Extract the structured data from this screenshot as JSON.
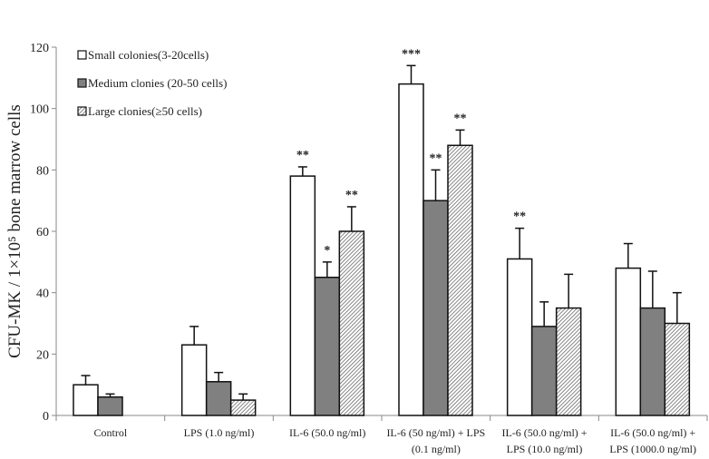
{
  "chart_data": {
    "type": "bar",
    "ylabel": "CFU-MK / 1×10⁵  bone marrow cells",
    "ylim": [
      0,
      120
    ],
    "yticks": [
      0,
      20,
      40,
      60,
      80,
      100,
      120
    ],
    "grid": false,
    "legend_placement": "top-left",
    "categories": [
      [
        "Control"
      ],
      [
        "LPS (1.0 ng/ml)"
      ],
      [
        "IL-6 (50.0 ng/ml)"
      ],
      [
        "IL-6 (50 ng/ml) + LPS",
        "(0.1 ng/ml)"
      ],
      [
        "IL-6 (50.0 ng/ml) +",
        "LPS (10.0 ng/ml)"
      ],
      [
        "IL-6 (50.0 ng/ml) +",
        "LPS (1000.0 ng/ml)"
      ]
    ],
    "series": [
      {
        "name": "Small colonies(3-20cells)",
        "fill": "white",
        "color": "#ffffff",
        "values": [
          10,
          23,
          78,
          108,
          51,
          48
        ],
        "error": [
          3,
          6,
          3,
          6,
          10,
          8
        ],
        "significance": [
          "",
          "",
          "**",
          "***",
          "**",
          ""
        ]
      },
      {
        "name": "Medium clonies (20-50 cells)",
        "fill": "solid",
        "color": "#808080",
        "values": [
          6,
          11,
          45,
          70,
          29,
          35
        ],
        "error": [
          1,
          3,
          5,
          10,
          8,
          12
        ],
        "significance": [
          "",
          "",
          "*",
          "**",
          "",
          ""
        ]
      },
      {
        "name": "Large clonies(≥50 cells)",
        "fill": "hatched",
        "color": "#ffffff",
        "values": [
          0,
          5,
          60,
          88,
          35,
          30
        ],
        "error": [
          0,
          2,
          8,
          5,
          11,
          10
        ],
        "significance": [
          "",
          "",
          "**",
          "**",
          "",
          ""
        ]
      }
    ]
  }
}
